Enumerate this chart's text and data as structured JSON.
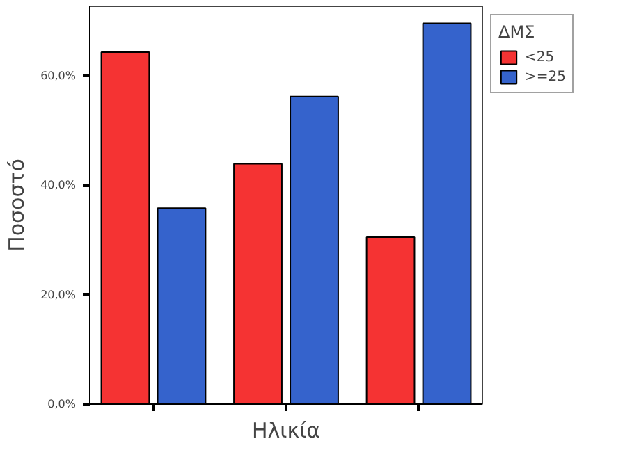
{
  "chart_data": {
    "type": "bar",
    "xlabel": "Ηλικία",
    "ylabel": "Ποσοστό",
    "legend_title": "ΔΜΣ",
    "categories": [
      null,
      null,
      null
    ],
    "series": [
      {
        "name": "<25",
        "color": "#f53333",
        "values": [
          64.3,
          43.9,
          30.5
        ]
      },
      {
        "name": ">=25",
        "color": "#3563cc",
        "values": [
          35.8,
          56.2,
          69.6
        ]
      }
    ],
    "ylim": [
      0,
      72.7
    ],
    "yticks": [
      {
        "value": 0,
        "label": "0,0%"
      },
      {
        "value": 20,
        "label": "20,0%"
      },
      {
        "value": 40,
        "label": "40,0%"
      },
      {
        "value": 60,
        "label": "60,0%"
      }
    ],
    "grid": false,
    "legend": "top right"
  }
}
